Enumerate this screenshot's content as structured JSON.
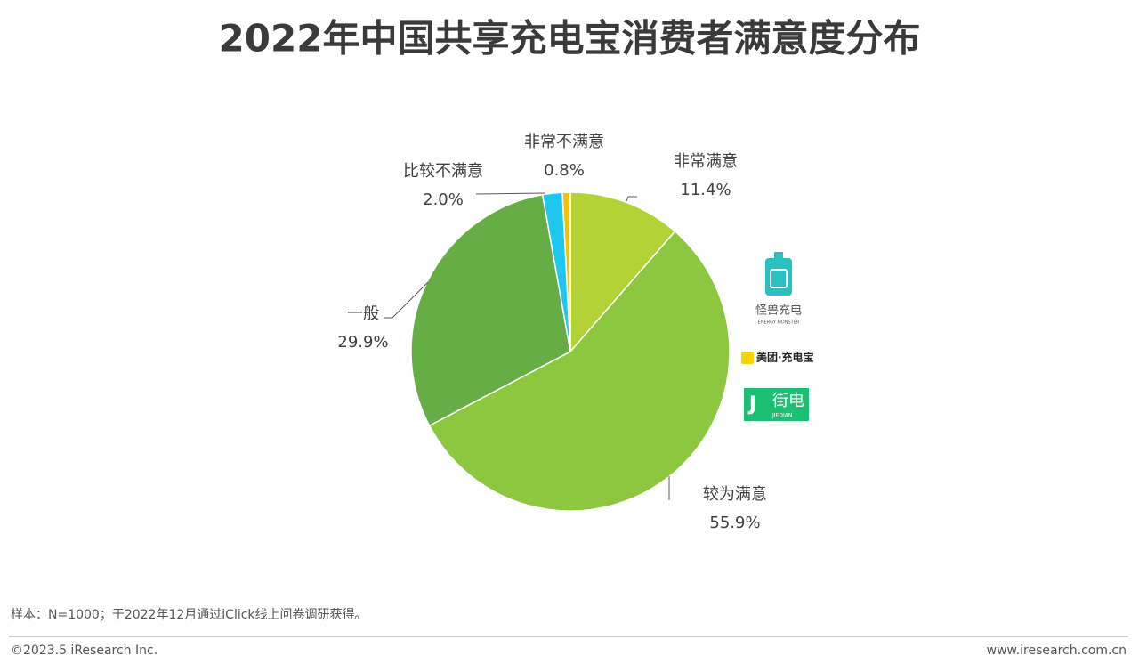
{
  "chart_data": {
    "type": "pie",
    "title": "2022年中国共享充电宝消费者满意度分布",
    "categories": [
      "非常满意",
      "较为满意",
      "一般",
      "比较不满意",
      "非常不满意"
    ],
    "values": [
      11.4,
      55.9,
      29.9,
      2.0,
      0.8
    ],
    "value_labels": [
      "11.4%",
      "55.9%",
      "29.9%",
      "2.0%",
      "0.8%"
    ],
    "colors": [
      "#b2d235",
      "#8dc63f",
      "#67ad45",
      "#1fc6ef",
      "#f4c300"
    ]
  },
  "logos": {
    "energy_monster": "怪兽充电",
    "energy_monster_en": "ENERGY MONSTER",
    "meituan": "美团·充电宝",
    "jiedian": "街电",
    "jiedian_en": "JIEDIAN"
  },
  "footer": {
    "note": "样本：N=1000；于2022年12月通过iClick线上问卷调研获得。",
    "copyright": "©2023.5 iResearch Inc.",
    "website": "www.iresearch.com.cn"
  }
}
